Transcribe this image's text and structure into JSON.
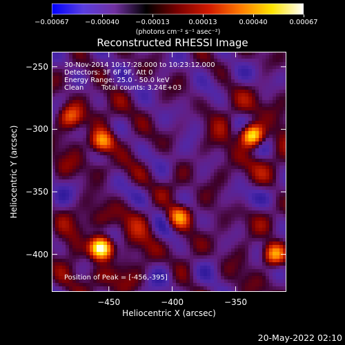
{
  "colorbar": {
    "ticks": [
      "-0.00067",
      "-0.00040",
      "-0.00013",
      "0.00013",
      "0.00040",
      "0.00067"
    ],
    "unit_label": "(photons cm⁻² s⁻¹ asec⁻²)",
    "range": [
      -0.00067,
      0.00067
    ],
    "gradient_colors": [
      "#0000ff",
      "#5a3ee0",
      "#7030a0",
      "#000000",
      "#7a0000",
      "#d21a00",
      "#ff7a00",
      "#ffe400",
      "#ffffff"
    ]
  },
  "chart_data": {
    "type": "heatmap",
    "title": "Reconstructed RHESSI Image",
    "xlabel": "Heliocentric X (arcsec)",
    "ylabel": "Heliocentric Y (arcsec)",
    "xlim": [
      -495,
      -310
    ],
    "ylim": [
      -430,
      -238
    ],
    "xticks": [
      -450,
      -400,
      -350
    ],
    "yticks": [
      -250,
      -300,
      -350,
      -400
    ],
    "xtick_labels": [
      "−450",
      "−400",
      "−350"
    ],
    "ytick_labels": [
      "−250",
      "−300",
      "−350",
      "−400"
    ],
    "sources": [
      {
        "x": -456,
        "y": -395,
        "relative_intensity": 1.0
      },
      {
        "x": -337,
        "y": -305,
        "relative_intensity": 0.85
      },
      {
        "x": -455,
        "y": -310,
        "relative_intensity": 0.55
      },
      {
        "x": -395,
        "y": -370,
        "relative_intensity": 0.5
      },
      {
        "x": -320,
        "y": -400,
        "relative_intensity": 0.55
      },
      {
        "x": -480,
        "y": -290,
        "relative_intensity": 0.35
      }
    ],
    "annotations": {
      "time_range": "30-Nov-2014 10:17:28.000 to 10:23:12.000",
      "detectors": "Detectors: 3F 6F 9F, Att 0",
      "energy_range": "Energy Range: 25.0 - 50.0 keV",
      "algorithm": "Clean",
      "total_counts": "Total counts: 3.24E+03",
      "peak": "Position of Peak = [-456,-395]"
    }
  },
  "timestamp": "20-May-2022 02:10"
}
